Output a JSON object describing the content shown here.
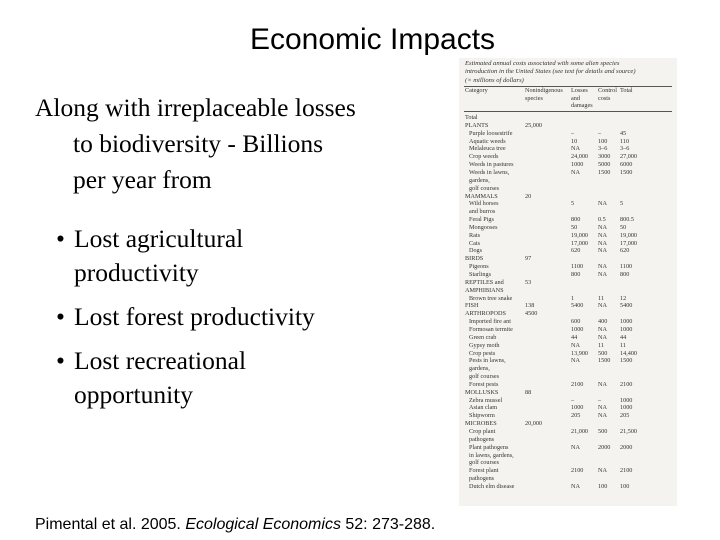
{
  "title": "Economic Impacts",
  "intro_lines": [
    "Along with irreplaceable losses",
    "to biodiversity  - Billions",
    "per year from"
  ],
  "bullets": [
    {
      "lines": [
        "Lost agricultural",
        "productivity"
      ]
    },
    {
      "lines": [
        "Lost forest productivity"
      ]
    },
    {
      "lines": [
        "Lost recreational",
        "opportunity"
      ]
    }
  ],
  "bullet_glyph": "•",
  "citation": {
    "authors": "Pimental et al. 2005. ",
    "journal": "Ecological Economics",
    "rest": " 52: 273-288."
  },
  "table": {
    "caption_lines": [
      "Estimated annual costs associated with some alien species",
      "introduction in the United States (see text for details and source)",
      "(× millions of dollars)"
    ],
    "headers": {
      "category": "Category",
      "nonindigenous": [
        "Nonindigenous",
        "species"
      ],
      "losses": [
        "Losses",
        "and",
        "damages"
      ],
      "control": [
        "Control",
        "costs"
      ],
      "total": "Total"
    },
    "rows": [
      {
        "cat": "Total",
        "sub": false
      },
      {
        "cat": "PLANTS",
        "non": "25,000",
        "sub": false
      },
      {
        "cat": "Purple loosestrife",
        "loss": "–",
        "ctrl": "–",
        "tot": "45",
        "sub": true
      },
      {
        "cat": "Aquatic weeds",
        "loss": "10",
        "ctrl": "100",
        "tot": "110",
        "sub": true
      },
      {
        "cat": "Melaleuca tree",
        "loss": "NA",
        "ctrl": "3–6",
        "tot": "3–6",
        "sub": true
      },
      {
        "cat": "Crop weeds",
        "loss": "24,000",
        "ctrl": "3000",
        "tot": "27,000",
        "sub": true
      },
      {
        "cat": "Weeds in pastures",
        "loss": "1000",
        "ctrl": "5000",
        "tot": "6000",
        "sub": true
      },
      {
        "cat": "Weeds in lawns,",
        "loss": "NA",
        "ctrl": "1500",
        "tot": "1500",
        "sub": true
      },
      {
        "cat": "gardens,",
        "sub": true
      },
      {
        "cat": "golf courses",
        "sub": true
      },
      {
        "cat": "MAMMALS",
        "non": "20",
        "sub": false
      },
      {
        "cat": "Wild horses",
        "loss": "5",
        "ctrl": "NA",
        "tot": "5",
        "sub": true
      },
      {
        "cat": "and burros",
        "sub": true
      },
      {
        "cat": "Feral Pigs",
        "loss": "800",
        "ctrl": "0.5",
        "tot": "800.5",
        "sub": true
      },
      {
        "cat": "Mongooses",
        "loss": "50",
        "ctrl": "NA",
        "tot": "50",
        "sub": true
      },
      {
        "cat": "Rats",
        "loss": "19,000",
        "ctrl": "NA",
        "tot": "19,000",
        "sub": true
      },
      {
        "cat": "Cats",
        "loss": "17,000",
        "ctrl": "NA",
        "tot": "17,000",
        "sub": true
      },
      {
        "cat": "Dogs",
        "loss": "620",
        "ctrl": "NA",
        "tot": "620",
        "sub": true
      },
      {
        "cat": "BIRDS",
        "non": "97",
        "sub": false
      },
      {
        "cat": "Pigeons",
        "loss": "1100",
        "ctrl": "NA",
        "tot": "1100",
        "sub": true
      },
      {
        "cat": "Starlings",
        "loss": "800",
        "ctrl": "NA",
        "tot": "800",
        "sub": true
      },
      {
        "cat": "REPTILES and",
        "non": "53",
        "sub": false
      },
      {
        "cat": "AMPHIBIANS",
        "sub": false
      },
      {
        "cat": "Brown tree snake",
        "loss": "1",
        "ctrl": "11",
        "tot": "12",
        "sub": true
      },
      {
        "cat": "FISH",
        "non": "138",
        "loss": "5400",
        "ctrl": "NA",
        "tot": "5400",
        "sub": false
      },
      {
        "cat": "ARTHROPODS",
        "non": "4500",
        "sub": false
      },
      {
        "cat": "Imported fire ant",
        "loss": "600",
        "ctrl": "400",
        "tot": "1000",
        "sub": true
      },
      {
        "cat": "Formosan termite",
        "loss": "1000",
        "ctrl": "NA",
        "tot": "1000",
        "sub": true
      },
      {
        "cat": "Green crab",
        "loss": "44",
        "ctrl": "NA",
        "tot": "44",
        "sub": true
      },
      {
        "cat": "Gypsy moth",
        "loss": "NA",
        "ctrl": "11",
        "tot": "11",
        "sub": true
      },
      {
        "cat": "Crop pests",
        "loss": "13,900",
        "ctrl": "500",
        "tot": "14,400",
        "sub": true
      },
      {
        "cat": "Pests in lawns,",
        "loss": "NA",
        "ctrl": "1500",
        "tot": "1500",
        "sub": true
      },
      {
        "cat": "gardens,",
        "sub": true
      },
      {
        "cat": "golf courses",
        "sub": true
      },
      {
        "cat": "Forest pests",
        "loss": "2100",
        "ctrl": "NA",
        "tot": "2100",
        "sub": true
      },
      {
        "cat": "MOLLUSKS",
        "non": "88",
        "sub": false
      },
      {
        "cat": "Zebra mussel",
        "loss": "–",
        "ctrl": "–",
        "tot": "1000",
        "sub": true
      },
      {
        "cat": "Asian clam",
        "loss": "1000",
        "ctrl": "NA",
        "tot": "1000",
        "sub": true
      },
      {
        "cat": "Shipworm",
        "loss": "205",
        "ctrl": "NA",
        "tot": "205",
        "sub": true
      },
      {
        "cat": "MICROBES",
        "non": "20,000",
        "sub": false
      },
      {
        "cat": "Crop plant",
        "loss": "21,000",
        "ctrl": "500",
        "tot": "21,500",
        "sub": true
      },
      {
        "cat": "pathogens",
        "sub": true
      },
      {
        "cat": "Plant pathogens",
        "loss": "NA",
        "ctrl": "2000",
        "tot": "2000",
        "sub": true
      },
      {
        "cat": "in lawns, gardens,",
        "sub": true
      },
      {
        "cat": "golf courses",
        "sub": true
      },
      {
        "cat": "Forest plant",
        "loss": "2100",
        "ctrl": "NA",
        "tot": "2100",
        "sub": true
      },
      {
        "cat": "pathogens",
        "sub": true
      },
      {
        "cat": "Dutch elm disease",
        "loss": "NA",
        "ctrl": "100",
        "tot": "100",
        "sub": true
      }
    ]
  }
}
